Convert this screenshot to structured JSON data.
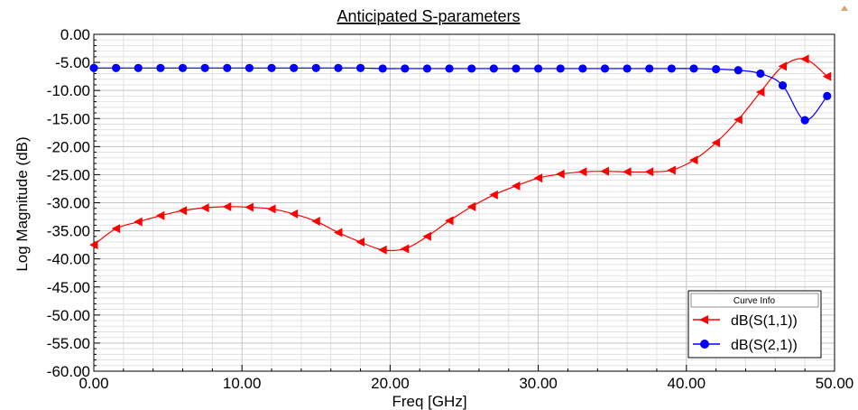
{
  "chart_data": {
    "type": "line",
    "title": "Anticipated S-parameters",
    "xlabel": "Freq [GHz]",
    "ylabel": "Log Magnitude (dB)",
    "xlim": [
      0,
      50
    ],
    "ylim": [
      -60,
      0
    ],
    "grid": true,
    "legend_position": "bottom-right",
    "legend_title": "Curve Info",
    "x_ticks": [
      "0.00",
      "10.00",
      "20.00",
      "30.00",
      "40.00",
      "50.00"
    ],
    "y_ticks": [
      "0.00",
      "-5.00",
      "-10.00",
      "-15.00",
      "-20.00",
      "-25.00",
      "-30.00",
      "-35.00",
      "-40.00",
      "-45.00",
      "-50.00",
      "-55.00",
      "-60.00"
    ],
    "x": [
      0,
      1.5,
      3,
      4.5,
      6,
      7.5,
      9,
      10.5,
      12,
      13.5,
      15,
      16.5,
      18,
      19.5,
      21,
      22.5,
      24,
      25.5,
      27,
      28.5,
      30,
      31.5,
      33,
      34.5,
      36,
      37.5,
      39,
      40.5,
      42,
      43.5,
      45,
      46.5,
      48,
      49.5
    ],
    "series": [
      {
        "name": "dB(S(1,1))",
        "color": "#ff0000",
        "marker": "triangle-left",
        "values": [
          -37.5,
          -34.6,
          -33.4,
          -32.3,
          -31.4,
          -30.9,
          -30.7,
          -30.8,
          -31.1,
          -32.0,
          -33.3,
          -35.3,
          -37.0,
          -38.4,
          -38.2,
          -36.0,
          -33.2,
          -30.7,
          -28.6,
          -27.0,
          -25.6,
          -24.9,
          -24.5,
          -24.4,
          -24.5,
          -24.5,
          -24.2,
          -22.4,
          -19.3,
          -15.2,
          -10.3,
          -5.7,
          -4.4,
          -7.5
        ]
      },
      {
        "name": "dB(S(2,1))",
        "color": "#0000ff",
        "marker": "circle",
        "values": [
          -6.0,
          -6.0,
          -6.0,
          -6.0,
          -6.0,
          -6.0,
          -6.0,
          -6.0,
          -6.0,
          -6.0,
          -6.0,
          -6.0,
          -6.0,
          -6.1,
          -6.1,
          -6.1,
          -6.1,
          -6.1,
          -6.1,
          -6.1,
          -6.1,
          -6.1,
          -6.1,
          -6.1,
          -6.1,
          -6.1,
          -6.1,
          -6.1,
          -6.2,
          -6.4,
          -7.0,
          -9.1,
          -15.3,
          -11.0
        ]
      }
    ]
  }
}
